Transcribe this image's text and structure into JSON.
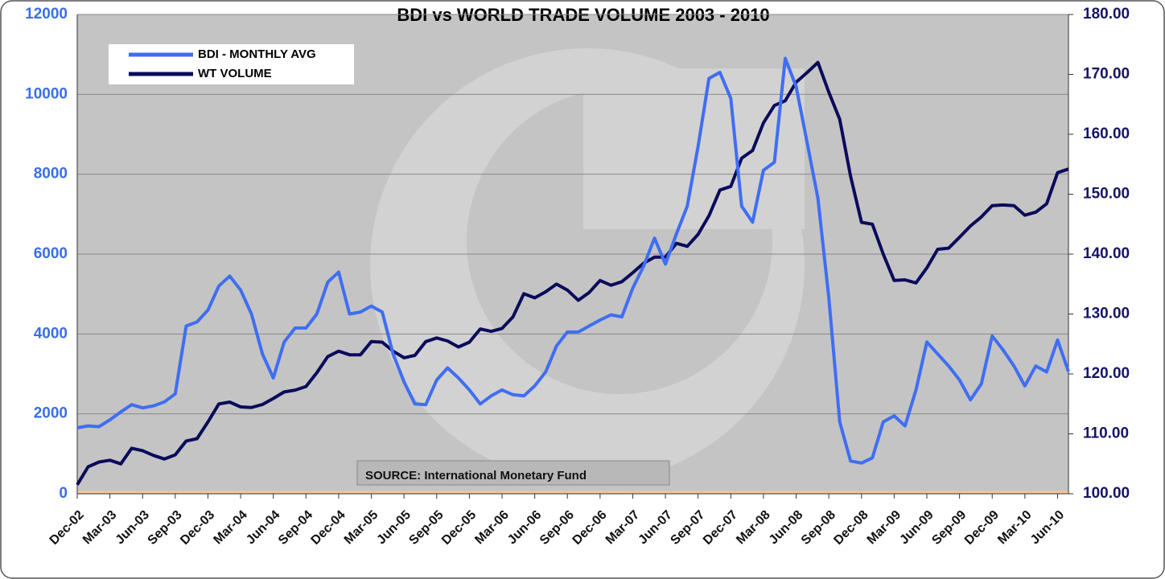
{
  "chart_data": {
    "type": "line",
    "title": "BDI vs WORLD TRADE VOLUME 2003 - 2010",
    "annotation": "SOURCE: International Monetary Fund",
    "categories": [
      "Dec-02",
      null,
      null,
      "Mar-03",
      null,
      null,
      "Jun-03",
      null,
      null,
      "Sep-03",
      null,
      null,
      "Dec-03",
      null,
      null,
      "Mar-04",
      null,
      null,
      "Jun-04",
      null,
      null,
      "Sep-04",
      null,
      null,
      "Dec-04",
      null,
      null,
      "Mar-05",
      null,
      null,
      "Jun-05",
      null,
      null,
      "Sep-05",
      null,
      null,
      "Dec-05",
      null,
      null,
      "Mar-06",
      null,
      null,
      "Jun-06",
      null,
      null,
      "Sep-06",
      null,
      null,
      "Dec-06",
      null,
      null,
      "Mar-07",
      null,
      null,
      "Jun-07",
      null,
      null,
      "Sep-07",
      null,
      null,
      "Dec-07",
      null,
      null,
      "Mar-08",
      null,
      null,
      "Jun-08",
      null,
      null,
      "Sep-08",
      null,
      null,
      "Dec-08",
      null,
      null,
      "Mar-09",
      null,
      null,
      "Jun-09",
      null,
      null,
      "Sep-09",
      null,
      null,
      "Dec-09",
      null,
      null,
      "Mar-10",
      null,
      null,
      "Jun-10",
      null
    ],
    "series": [
      {
        "name": "BDI - MONTHLY AVG",
        "color": "#3f6ef2",
        "values": [
          1650,
          1700,
          1680,
          1850,
          2050,
          2230,
          2150,
          2200,
          2300,
          2500,
          4200,
          4300,
          4600,
          5200,
          5450,
          5100,
          4500,
          3500,
          2900,
          3800,
          4150,
          4150,
          4500,
          5300,
          5550,
          4500,
          4550,
          4700,
          4550,
          3500,
          2800,
          2250,
          2230,
          2850,
          3150,
          2900,
          2600,
          2250,
          2450,
          2600,
          2480,
          2450,
          2700,
          3050,
          3700,
          4050,
          4050,
          4200,
          4350,
          4480,
          4430,
          5150,
          5700,
          6400,
          5750,
          6500,
          7200,
          8700,
          10400,
          10550,
          9900,
          7200,
          6800,
          8100,
          8300,
          10900,
          10200,
          8800,
          7400,
          4900,
          1800,
          820,
          770,
          900,
          1800,
          1950,
          1700,
          2600,
          3800,
          3500,
          3200,
          2850,
          2350,
          2750,
          3950,
          3600,
          3200,
          2700,
          3200,
          3050,
          3850,
          3060
        ]
      },
      {
        "name": "WT VOLUME",
        "color": "#0b0b5c",
        "axis": "y2",
        "values": [
          101.5,
          104.5,
          105.3,
          105.6,
          105,
          107.6,
          107.2,
          106.4,
          105.8,
          106.5,
          108.8,
          109.2,
          112,
          115,
          115.3,
          114.5,
          114.4,
          114.9,
          115.9,
          117,
          117.3,
          117.9,
          120.2,
          122.9,
          123.8,
          123.2,
          123.2,
          125.4,
          125.3,
          123.8,
          122.7,
          123.1,
          125.4,
          126,
          125.5,
          124.5,
          125.3,
          127.5,
          127.1,
          127.6,
          129.5,
          133.4,
          132.7,
          133.7,
          135,
          134,
          132.3,
          133.6,
          135.6,
          134.8,
          135.4,
          136.9,
          138.5,
          139.5,
          139.5,
          141.8,
          141.3,
          143.3,
          146.4,
          150.7,
          151.3,
          156,
          157.3,
          161.9,
          164.8,
          165.6,
          168.7,
          170.3,
          172,
          167,
          162.5,
          153,
          145.3,
          145,
          140,
          135.6,
          135.7,
          135.2,
          137.7,
          140.8,
          141,
          142.8,
          144.7,
          146.2,
          148.1,
          148.2,
          148.1,
          146.5,
          147,
          148.4,
          153.6,
          154.2
        ]
      }
    ],
    "ylim": [
      0,
      12000
    ],
    "yticks": [
      0,
      2000,
      4000,
      6000,
      8000,
      10000,
      12000
    ],
    "y2lim": [
      100,
      180
    ],
    "y2ticks": [
      {
        "value": 100,
        "label": "100.00"
      },
      {
        "value": 110,
        "label": "110.00"
      },
      {
        "value": 120,
        "label": "120.00"
      },
      {
        "value": 130,
        "label": "130.00"
      },
      {
        "value": 140,
        "label": "140.00"
      },
      {
        "value": 150,
        "label": "150.00"
      },
      {
        "value": 160,
        "label": "160.00"
      },
      {
        "value": 170,
        "label": "170.00"
      },
      {
        "value": 180,
        "label": "180.00"
      }
    ],
    "grid": true,
    "legend": "upper left"
  }
}
